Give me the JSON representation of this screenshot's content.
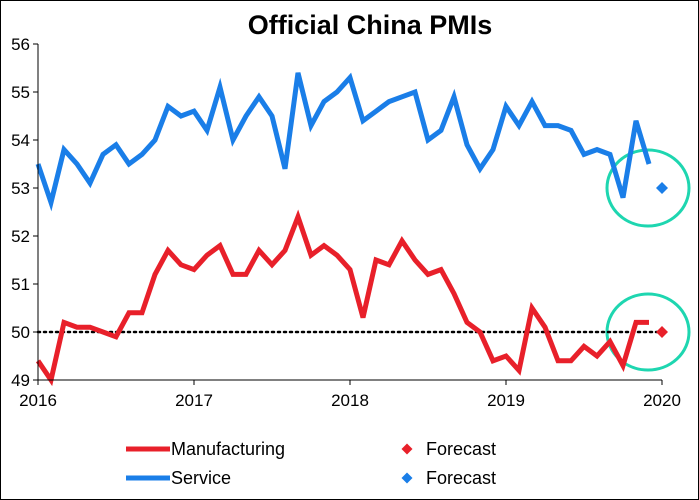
{
  "chart_data": {
    "type": "line",
    "title": "Official China PMIs",
    "xlabel": "",
    "ylabel": "",
    "xlim": [
      "2016-01",
      "2020-01"
    ],
    "ylim": [
      49,
      56
    ],
    "x_ticks": [
      "2016",
      "2017",
      "2018",
      "2019",
      "2020"
    ],
    "y_ticks": [
      "49",
      "50",
      "51",
      "52",
      "53",
      "54",
      "55",
      "56"
    ],
    "grid": false,
    "legend_position": "bottom",
    "reference_line": {
      "y": 50,
      "style": "dotted",
      "color": "#000000"
    },
    "series": [
      {
        "name": "Manufacturing",
        "color": "#e8202a",
        "style": "line",
        "x": [
          "2016-01",
          "2016-02",
          "2016-03",
          "2016-04",
          "2016-05",
          "2016-06",
          "2016-07",
          "2016-08",
          "2016-09",
          "2016-10",
          "2016-11",
          "2016-12",
          "2017-01",
          "2017-02",
          "2017-03",
          "2017-04",
          "2017-05",
          "2017-06",
          "2017-07",
          "2017-08",
          "2017-09",
          "2017-10",
          "2017-11",
          "2017-12",
          "2018-01",
          "2018-02",
          "2018-03",
          "2018-04",
          "2018-05",
          "2018-06",
          "2018-07",
          "2018-08",
          "2018-09",
          "2018-10",
          "2018-11",
          "2018-12",
          "2019-01",
          "2019-02",
          "2019-03",
          "2019-04",
          "2019-05",
          "2019-06",
          "2019-07",
          "2019-08",
          "2019-09",
          "2019-10",
          "2019-11",
          "2019-12"
        ],
        "values": [
          49.4,
          49.0,
          50.2,
          50.1,
          50.1,
          50.0,
          49.9,
          50.4,
          50.4,
          51.2,
          51.7,
          51.4,
          51.3,
          51.6,
          51.8,
          51.2,
          51.2,
          51.7,
          51.4,
          51.7,
          52.4,
          51.6,
          51.8,
          51.6,
          51.3,
          50.3,
          51.5,
          51.4,
          51.9,
          51.5,
          51.2,
          51.3,
          50.8,
          50.2,
          50.0,
          49.4,
          49.5,
          49.2,
          50.5,
          50.1,
          49.4,
          49.4,
          49.7,
          49.5,
          49.8,
          49.3,
          50.2,
          50.2
        ]
      },
      {
        "name": "Service",
        "color": "#1a7ee8",
        "style": "line",
        "x": [
          "2016-01",
          "2016-02",
          "2016-03",
          "2016-04",
          "2016-05",
          "2016-06",
          "2016-07",
          "2016-08",
          "2016-09",
          "2016-10",
          "2016-11",
          "2016-12",
          "2017-01",
          "2017-02",
          "2017-03",
          "2017-04",
          "2017-05",
          "2017-06",
          "2017-07",
          "2017-08",
          "2017-09",
          "2017-10",
          "2017-11",
          "2017-12",
          "2018-01",
          "2018-02",
          "2018-03",
          "2018-04",
          "2018-05",
          "2018-06",
          "2018-07",
          "2018-08",
          "2018-09",
          "2018-10",
          "2018-11",
          "2018-12",
          "2019-01",
          "2019-02",
          "2019-03",
          "2019-04",
          "2019-05",
          "2019-06",
          "2019-07",
          "2019-08",
          "2019-09",
          "2019-10",
          "2019-11",
          "2019-12"
        ],
        "values": [
          53.5,
          52.7,
          53.8,
          53.5,
          53.1,
          53.7,
          53.9,
          53.5,
          53.7,
          54.0,
          54.7,
          54.5,
          54.6,
          54.2,
          55.1,
          54.0,
          54.5,
          54.9,
          54.5,
          53.4,
          55.4,
          54.3,
          54.8,
          55.0,
          55.3,
          54.4,
          54.6,
          54.8,
          54.9,
          55.0,
          54.0,
          54.2,
          54.9,
          53.9,
          53.4,
          53.8,
          54.7,
          54.3,
          54.8,
          54.3,
          54.3,
          54.2,
          53.7,
          53.8,
          53.7,
          52.8,
          54.4,
          53.5
        ]
      },
      {
        "name": "Forecast",
        "color": "#e8202a",
        "style": "marker",
        "x": [
          "2020-01"
        ],
        "values": [
          50.0
        ]
      },
      {
        "name": "Forecast",
        "color": "#1a7ee8",
        "style": "marker",
        "x": [
          "2020-01"
        ],
        "values": [
          53.0
        ]
      }
    ],
    "annotations": [
      {
        "type": "circle",
        "around": "2020-01",
        "value": 53.0,
        "color": "#1ed6b0"
      },
      {
        "type": "circle",
        "around": "2020-01",
        "value": 50.0,
        "color": "#1ed6b0"
      }
    ]
  }
}
